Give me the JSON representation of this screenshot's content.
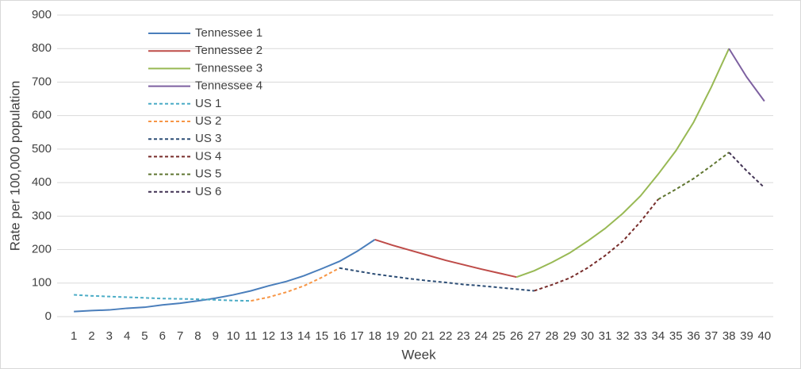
{
  "chart_data": {
    "type": "line",
    "y_label": "Rate per 100,000 population",
    "x_label": "Week",
    "x": [
      1,
      2,
      3,
      4,
      5,
      6,
      7,
      8,
      9,
      10,
      11,
      12,
      13,
      14,
      15,
      16,
      17,
      18,
      19,
      20,
      21,
      22,
      23,
      24,
      25,
      26,
      27,
      28,
      29,
      30,
      31,
      32,
      33,
      34,
      35,
      36,
      37,
      38,
      39,
      40
    ],
    "xlim": [
      0.5,
      40.5
    ],
    "xticks": [
      1,
      2,
      3,
      4,
      5,
      6,
      7,
      8,
      9,
      10,
      11,
      12,
      13,
      14,
      15,
      16,
      17,
      18,
      19,
      20,
      21,
      22,
      23,
      24,
      25,
      26,
      27,
      28,
      29,
      30,
      31,
      32,
      33,
      34,
      35,
      36,
      37,
      38,
      39,
      40
    ],
    "ylim": [
      0,
      900
    ],
    "yticks": [
      0,
      100,
      200,
      300,
      400,
      500,
      600,
      700,
      800,
      900
    ],
    "grid": true,
    "legend": "upper-left",
    "series": [
      {
        "name": "Tennessee 1",
        "color": "#4a7ebb",
        "dashed": false,
        "values": [
          15,
          18,
          20,
          25,
          28,
          35,
          40,
          47,
          55,
          65,
          77,
          92,
          105,
          122,
          143,
          165,
          195,
          230,
          null,
          null,
          null,
          null,
          null,
          null,
          null,
          null,
          null,
          null,
          null,
          null,
          null,
          null,
          null,
          null,
          null,
          null,
          null,
          null,
          null,
          null
        ]
      },
      {
        "name": "Tennessee 2",
        "color": "#be4b48",
        "dashed": false,
        "values": [
          null,
          null,
          null,
          null,
          null,
          null,
          null,
          null,
          null,
          null,
          null,
          null,
          null,
          null,
          null,
          null,
          null,
          230,
          213,
          198,
          183,
          168,
          155,
          142,
          130,
          118,
          null,
          null,
          null,
          null,
          null,
          null,
          null,
          null,
          null,
          null,
          null,
          null,
          null,
          null
        ]
      },
      {
        "name": "Tennessee 3",
        "color": "#98b954",
        "dashed": false,
        "values": [
          null,
          null,
          null,
          null,
          null,
          null,
          null,
          null,
          null,
          null,
          null,
          null,
          null,
          null,
          null,
          null,
          null,
          null,
          null,
          null,
          null,
          null,
          null,
          null,
          null,
          118,
          137,
          162,
          190,
          225,
          263,
          308,
          360,
          425,
          495,
          580,
          685,
          800,
          null,
          null
        ]
      },
      {
        "name": "Tennessee 4",
        "color": "#7d60a0",
        "dashed": false,
        "values": [
          null,
          null,
          null,
          null,
          null,
          null,
          null,
          null,
          null,
          null,
          null,
          null,
          null,
          null,
          null,
          null,
          null,
          null,
          null,
          null,
          null,
          null,
          null,
          null,
          null,
          null,
          null,
          null,
          null,
          null,
          null,
          null,
          null,
          null,
          null,
          null,
          null,
          800,
          715,
          643
        ]
      },
      {
        "name": "US 1",
        "color": "#4bacc6",
        "dashed": true,
        "values": [
          65,
          62,
          60,
          58,
          56,
          54,
          53,
          52,
          50,
          48,
          47,
          null,
          null,
          null,
          null,
          null,
          null,
          null,
          null,
          null,
          null,
          null,
          null,
          null,
          null,
          null,
          null,
          null,
          null,
          null,
          null,
          null,
          null,
          null,
          null,
          null,
          null,
          null,
          null,
          null
        ]
      },
      {
        "name": "US 2",
        "color": "#f79646",
        "dashed": true,
        "values": [
          null,
          null,
          null,
          null,
          null,
          null,
          null,
          null,
          null,
          null,
          47,
          58,
          73,
          92,
          117,
          145,
          null,
          null,
          null,
          null,
          null,
          null,
          null,
          null,
          null,
          null,
          null,
          null,
          null,
          null,
          null,
          null,
          null,
          null,
          null,
          null,
          null,
          null,
          null,
          null
        ]
      },
      {
        "name": "US 3",
        "color": "#2c4d75",
        "dashed": true,
        "values": [
          null,
          null,
          null,
          null,
          null,
          null,
          null,
          null,
          null,
          null,
          null,
          null,
          null,
          null,
          null,
          145,
          136,
          127,
          120,
          113,
          107,
          102,
          96,
          92,
          87,
          82,
          77,
          null,
          null,
          null,
          null,
          null,
          null,
          null,
          null,
          null,
          null,
          null,
          null,
          null
        ]
      },
      {
        "name": "US 4",
        "color": "#772c2a",
        "dashed": true,
        "values": [
          null,
          null,
          null,
          null,
          null,
          null,
          null,
          null,
          null,
          null,
          null,
          null,
          null,
          null,
          null,
          null,
          null,
          null,
          null,
          null,
          null,
          null,
          null,
          null,
          null,
          null,
          77,
          95,
          115,
          145,
          182,
          225,
          283,
          350,
          null,
          null,
          null,
          null,
          null,
          null
        ]
      },
      {
        "name": "US 5",
        "color": "#5f7530",
        "dashed": true,
        "values": [
          null,
          null,
          null,
          null,
          null,
          null,
          null,
          null,
          null,
          null,
          null,
          null,
          null,
          null,
          null,
          null,
          null,
          null,
          null,
          null,
          null,
          null,
          null,
          null,
          null,
          null,
          null,
          null,
          null,
          null,
          null,
          null,
          null,
          350,
          380,
          412,
          450,
          490,
          null,
          null
        ]
      },
      {
        "name": "US 6",
        "color": "#403152",
        "dashed": true,
        "values": [
          null,
          null,
          null,
          null,
          null,
          null,
          null,
          null,
          null,
          null,
          null,
          null,
          null,
          null,
          null,
          null,
          null,
          null,
          null,
          null,
          null,
          null,
          null,
          null,
          null,
          null,
          null,
          null,
          null,
          null,
          null,
          null,
          null,
          null,
          null,
          null,
          null,
          490,
          435,
          385
        ]
      }
    ]
  }
}
